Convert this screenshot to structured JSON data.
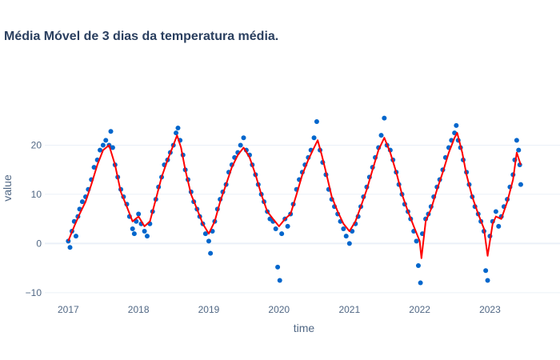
{
  "chart_data": {
    "type": "scatter",
    "title": "Média Móvel de 3 dias da temperatura média.",
    "xlabel": "time",
    "ylabel": "value",
    "x_range": [
      "2016-09-01",
      "2023-12-31"
    ],
    "ylim": [
      -11,
      30
    ],
    "x_ticks": [
      {
        "date": "2017-01-01",
        "label": "2017"
      },
      {
        "date": "2018-01-01",
        "label": "2018"
      },
      {
        "date": "2019-01-01",
        "label": "2019"
      },
      {
        "date": "2020-01-01",
        "label": "2020"
      },
      {
        "date": "2021-01-01",
        "label": "2021"
      },
      {
        "date": "2022-01-01",
        "label": "2022"
      },
      {
        "date": "2023-01-01",
        "label": "2023"
      }
    ],
    "y_ticks": [
      {
        "value": -10,
        "label": "−10"
      },
      {
        "value": 0,
        "label": "0"
      },
      {
        "value": 10,
        "label": "10"
      },
      {
        "value": 20,
        "label": "20"
      }
    ],
    "grid": true,
    "colors": {
      "points": "#0066cc",
      "moving_average": "#ff0000"
    },
    "series": [
      {
        "mode": "markers",
        "color": "#0066cc",
        "points": [
          [
            "2017-01-01",
            0.5
          ],
          [
            "2017-01-10",
            -0.8
          ],
          [
            "2017-01-20",
            2.5
          ],
          [
            "2017-02-01",
            4.5
          ],
          [
            "2017-02-10",
            1.5
          ],
          [
            "2017-02-20",
            5.5
          ],
          [
            "2017-03-01",
            7.0
          ],
          [
            "2017-03-15",
            8.5
          ],
          [
            "2017-04-01",
            9.5
          ],
          [
            "2017-04-15",
            11.0
          ],
          [
            "2017-05-01",
            13.0
          ],
          [
            "2017-05-15",
            15.5
          ],
          [
            "2017-06-01",
            17.0
          ],
          [
            "2017-06-15",
            19.0
          ],
          [
            "2017-07-01",
            20.0
          ],
          [
            "2017-07-15",
            21.0
          ],
          [
            "2017-08-01",
            20.0
          ],
          [
            "2017-08-10",
            22.8
          ],
          [
            "2017-08-20",
            19.5
          ],
          [
            "2017-09-01",
            16.0
          ],
          [
            "2017-09-15",
            13.5
          ],
          [
            "2017-10-01",
            11.0
          ],
          [
            "2017-10-15",
            9.5
          ],
          [
            "2017-11-01",
            8.0
          ],
          [
            "2017-11-15",
            5.5
          ],
          [
            "2017-12-01",
            3.0
          ],
          [
            "2017-12-10",
            2.0
          ],
          [
            "2017-12-20",
            4.5
          ],
          [
            "2018-01-01",
            6.0
          ],
          [
            "2018-01-15",
            4.0
          ],
          [
            "2018-02-01",
            2.5
          ],
          [
            "2018-02-15",
            1.5
          ],
          [
            "2018-03-01",
            4.0
          ],
          [
            "2018-03-15",
            6.5
          ],
          [
            "2018-04-01",
            9.0
          ],
          [
            "2018-04-15",
            11.5
          ],
          [
            "2018-05-01",
            13.5
          ],
          [
            "2018-05-15",
            16.0
          ],
          [
            "2018-06-01",
            17.0
          ],
          [
            "2018-06-15",
            18.5
          ],
          [
            "2018-07-01",
            20.0
          ],
          [
            "2018-07-15",
            22.5
          ],
          [
            "2018-07-25",
            23.5
          ],
          [
            "2018-08-05",
            21.0
          ],
          [
            "2018-08-20",
            18.0
          ],
          [
            "2018-09-01",
            15.0
          ],
          [
            "2018-09-15",
            13.0
          ],
          [
            "2018-10-01",
            10.5
          ],
          [
            "2018-10-15",
            8.5
          ],
          [
            "2018-11-01",
            7.0
          ],
          [
            "2018-11-15",
            5.5
          ],
          [
            "2018-12-01",
            4.0
          ],
          [
            "2018-12-15",
            2.0
          ],
          [
            "2019-01-01",
            0.5
          ],
          [
            "2019-01-10",
            -2.0
          ],
          [
            "2019-01-20",
            2.5
          ],
          [
            "2019-02-01",
            4.5
          ],
          [
            "2019-02-15",
            7.0
          ],
          [
            "2019-03-01",
            9.0
          ],
          [
            "2019-03-15",
            10.5
          ],
          [
            "2019-04-01",
            12.0
          ],
          [
            "2019-04-15",
            14.5
          ],
          [
            "2019-05-01",
            16.0
          ],
          [
            "2019-05-15",
            17.5
          ],
          [
            "2019-06-01",
            18.5
          ],
          [
            "2019-06-15",
            20.0
          ],
          [
            "2019-07-01",
            21.5
          ],
          [
            "2019-07-15",
            19.0
          ],
          [
            "2019-08-01",
            18.0
          ],
          [
            "2019-08-15",
            16.0
          ],
          [
            "2019-09-01",
            14.0
          ],
          [
            "2019-09-15",
            12.0
          ],
          [
            "2019-10-01",
            10.0
          ],
          [
            "2019-10-15",
            8.5
          ],
          [
            "2019-11-01",
            6.5
          ],
          [
            "2019-11-15",
            5.0
          ],
          [
            "2019-12-01",
            4.5
          ],
          [
            "2019-12-15",
            3.0
          ],
          [
            "2019-12-25",
            -4.8
          ],
          [
            "2020-01-05",
            -7.5
          ],
          [
            "2020-01-15",
            2.0
          ],
          [
            "2020-02-01",
            5.0
          ],
          [
            "2020-02-15",
            3.5
          ],
          [
            "2020-03-01",
            6.0
          ],
          [
            "2020-03-15",
            8.0
          ],
          [
            "2020-04-01",
            11.0
          ],
          [
            "2020-04-15",
            13.0
          ],
          [
            "2020-05-01",
            14.5
          ],
          [
            "2020-05-15",
            16.0
          ],
          [
            "2020-06-01",
            17.5
          ],
          [
            "2020-06-15",
            19.0
          ],
          [
            "2020-07-01",
            21.5
          ],
          [
            "2020-07-15",
            24.8
          ],
          [
            "2020-08-01",
            19.0
          ],
          [
            "2020-08-15",
            16.5
          ],
          [
            "2020-09-01",
            14.0
          ],
          [
            "2020-09-15",
            11.0
          ],
          [
            "2020-10-01",
            9.0
          ],
          [
            "2020-10-15",
            7.5
          ],
          [
            "2020-11-01",
            6.0
          ],
          [
            "2020-11-15",
            4.5
          ],
          [
            "2020-12-01",
            3.0
          ],
          [
            "2020-12-15",
            1.5
          ],
          [
            "2021-01-01",
            0.0
          ],
          [
            "2021-01-15",
            2.5
          ],
          [
            "2021-02-01",
            4.0
          ],
          [
            "2021-02-15",
            5.5
          ],
          [
            "2021-03-01",
            7.5
          ],
          [
            "2021-03-15",
            9.5
          ],
          [
            "2021-04-01",
            11.5
          ],
          [
            "2021-04-15",
            13.5
          ],
          [
            "2021-05-01",
            15.5
          ],
          [
            "2021-05-15",
            17.5
          ],
          [
            "2021-06-01",
            19.5
          ],
          [
            "2021-06-15",
            22.0
          ],
          [
            "2021-07-01",
            25.5
          ],
          [
            "2021-07-15",
            20.0
          ],
          [
            "2021-08-01",
            19.0
          ],
          [
            "2021-08-15",
            17.0
          ],
          [
            "2021-09-01",
            14.5
          ],
          [
            "2021-09-15",
            12.0
          ],
          [
            "2021-10-01",
            10.0
          ],
          [
            "2021-10-15",
            8.0
          ],
          [
            "2021-11-01",
            6.5
          ],
          [
            "2021-11-15",
            5.0
          ],
          [
            "2021-12-01",
            2.5
          ],
          [
            "2021-12-15",
            0.5
          ],
          [
            "2021-12-25",
            -4.5
          ],
          [
            "2022-01-05",
            -8.0
          ],
          [
            "2022-01-15",
            2.0
          ],
          [
            "2022-02-01",
            5.0
          ],
          [
            "2022-02-15",
            6.0
          ],
          [
            "2022-03-01",
            7.5
          ],
          [
            "2022-03-15",
            9.5
          ],
          [
            "2022-04-01",
            11.5
          ],
          [
            "2022-04-15",
            13.0
          ],
          [
            "2022-05-01",
            15.0
          ],
          [
            "2022-05-15",
            17.5
          ],
          [
            "2022-06-01",
            19.5
          ],
          [
            "2022-06-15",
            21.0
          ],
          [
            "2022-07-01",
            22.5
          ],
          [
            "2022-07-10",
            24.0
          ],
          [
            "2022-07-20",
            21.0
          ],
          [
            "2022-08-01",
            19.5
          ],
          [
            "2022-08-15",
            17.0
          ],
          [
            "2022-09-01",
            14.5
          ],
          [
            "2022-09-15",
            12.0
          ],
          [
            "2022-10-01",
            9.5
          ],
          [
            "2022-10-15",
            7.5
          ],
          [
            "2022-11-01",
            6.0
          ],
          [
            "2022-11-15",
            4.5
          ],
          [
            "2022-12-01",
            2.5
          ],
          [
            "2022-12-10",
            -5.5
          ],
          [
            "2022-12-20",
            -7.5
          ],
          [
            "2023-01-01",
            1.5
          ],
          [
            "2023-01-15",
            4.5
          ],
          [
            "2023-02-01",
            6.5
          ],
          [
            "2023-02-15",
            3.5
          ],
          [
            "2023-03-01",
            5.5
          ],
          [
            "2023-03-15",
            7.5
          ],
          [
            "2023-04-01",
            9.0
          ],
          [
            "2023-04-15",
            11.5
          ],
          [
            "2023-05-01",
            14.0
          ],
          [
            "2023-05-10",
            17.0
          ],
          [
            "2023-05-20",
            21.0
          ],
          [
            "2023-05-30",
            19.0
          ],
          [
            "2023-06-05",
            16.0
          ],
          [
            "2023-06-10",
            12.0
          ]
        ]
      },
      {
        "mode": "lines",
        "color": "#ff0000",
        "points": [
          [
            "2017-01-01",
            0.5
          ],
          [
            "2017-02-01",
            3.5
          ],
          [
            "2017-03-01",
            6.0
          ],
          [
            "2017-04-01",
            8.5
          ],
          [
            "2017-05-01",
            12.0
          ],
          [
            "2017-06-01",
            16.0
          ],
          [
            "2017-07-01",
            19.0
          ],
          [
            "2017-08-01",
            20.0
          ],
          [
            "2017-09-01",
            16.0
          ],
          [
            "2017-10-01",
            10.5
          ],
          [
            "2017-11-01",
            7.5
          ],
          [
            "2017-12-01",
            4.5
          ],
          [
            "2018-01-01",
            5.5
          ],
          [
            "2018-02-01",
            3.5
          ],
          [
            "2018-03-01",
            4.5
          ],
          [
            "2018-04-01",
            9.0
          ],
          [
            "2018-05-01",
            13.5
          ],
          [
            "2018-06-01",
            17.0
          ],
          [
            "2018-07-01",
            20.0
          ],
          [
            "2018-07-20",
            22.0
          ],
          [
            "2018-08-10",
            19.5
          ],
          [
            "2018-09-01",
            15.0
          ],
          [
            "2018-10-01",
            10.0
          ],
          [
            "2018-11-01",
            7.0
          ],
          [
            "2018-12-01",
            4.0
          ],
          [
            "2019-01-01",
            2.0
          ],
          [
            "2019-02-01",
            4.5
          ],
          [
            "2019-03-01",
            8.5
          ],
          [
            "2019-04-01",
            12.0
          ],
          [
            "2019-05-01",
            15.5
          ],
          [
            "2019-06-01",
            18.0
          ],
          [
            "2019-07-01",
            19.5
          ],
          [
            "2019-08-01",
            17.5
          ],
          [
            "2019-09-01",
            14.0
          ],
          [
            "2019-10-01",
            10.0
          ],
          [
            "2019-11-01",
            6.5
          ],
          [
            "2019-12-01",
            5.0
          ],
          [
            "2020-01-01",
            3.5
          ],
          [
            "2020-02-01",
            5.0
          ],
          [
            "2020-03-01",
            6.0
          ],
          [
            "2020-04-01",
            10.0
          ],
          [
            "2020-05-01",
            14.0
          ],
          [
            "2020-06-01",
            17.0
          ],
          [
            "2020-07-01",
            19.5
          ],
          [
            "2020-07-20",
            21.0
          ],
          [
            "2020-08-10",
            18.0
          ],
          [
            "2020-09-01",
            14.5
          ],
          [
            "2020-10-01",
            9.5
          ],
          [
            "2020-11-01",
            6.5
          ],
          [
            "2020-12-01",
            4.0
          ],
          [
            "2021-01-01",
            2.5
          ],
          [
            "2021-02-01",
            4.5
          ],
          [
            "2021-03-01",
            7.5
          ],
          [
            "2021-04-01",
            11.0
          ],
          [
            "2021-05-01",
            15.0
          ],
          [
            "2021-06-01",
            19.0
          ],
          [
            "2021-07-01",
            21.5
          ],
          [
            "2021-08-01",
            18.5
          ],
          [
            "2021-09-01",
            14.5
          ],
          [
            "2021-10-01",
            10.0
          ],
          [
            "2021-11-01",
            6.5
          ],
          [
            "2021-12-01",
            3.5
          ],
          [
            "2022-01-01",
            0.5
          ],
          [
            "2022-01-10",
            -3.0
          ],
          [
            "2022-02-01",
            4.5
          ],
          [
            "2022-03-01",
            7.0
          ],
          [
            "2022-04-01",
            11.0
          ],
          [
            "2022-05-01",
            14.5
          ],
          [
            "2022-06-01",
            18.5
          ],
          [
            "2022-07-01",
            21.5
          ],
          [
            "2022-07-15",
            22.5
          ],
          [
            "2022-08-10",
            18.5
          ],
          [
            "2022-09-01",
            14.0
          ],
          [
            "2022-10-01",
            9.5
          ],
          [
            "2022-11-01",
            6.0
          ],
          [
            "2022-12-01",
            3.0
          ],
          [
            "2022-12-20",
            -2.5
          ],
          [
            "2023-01-15",
            4.0
          ],
          [
            "2023-02-01",
            5.5
          ],
          [
            "2023-03-01",
            5.0
          ],
          [
            "2023-04-01",
            8.5
          ],
          [
            "2023-05-01",
            13.0
          ],
          [
            "2023-05-20",
            18.5
          ],
          [
            "2023-06-10",
            16.0
          ]
        ]
      }
    ]
  }
}
